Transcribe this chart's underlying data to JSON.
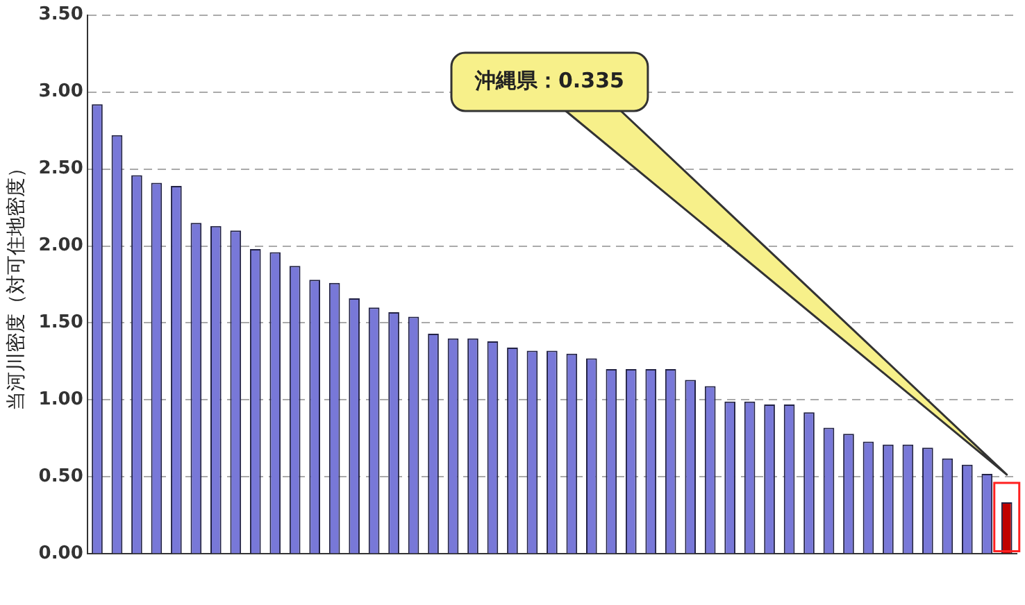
{
  "chart_data": {
    "type": "bar",
    "ylabel": "当河川密度（対可住地密度）",
    "categories": [
      null,
      null,
      null,
      null,
      null,
      null,
      null,
      null,
      null,
      null,
      null,
      null,
      null,
      null,
      null,
      null,
      null,
      null,
      null,
      null,
      null,
      null,
      null,
      null,
      null,
      null,
      null,
      null,
      null,
      null,
      null,
      null,
      null,
      null,
      null,
      null,
      null,
      null,
      null,
      null,
      null,
      null,
      null,
      null,
      null,
      null,
      null
    ],
    "values": [
      2.92,
      2.72,
      2.46,
      2.41,
      2.39,
      2.15,
      2.13,
      2.1,
      1.98,
      1.96,
      1.87,
      1.78,
      1.76,
      1.66,
      1.6,
      1.57,
      1.54,
      1.43,
      1.4,
      1.4,
      1.38,
      1.34,
      1.32,
      1.32,
      1.3,
      1.27,
      1.2,
      1.2,
      1.2,
      1.2,
      1.13,
      1.09,
      0.99,
      0.99,
      0.97,
      0.97,
      0.92,
      0.82,
      0.78,
      0.73,
      0.71,
      0.71,
      0.69,
      0.62,
      0.58,
      0.52,
      0.335
    ],
    "colors": [
      "#7878d8",
      "#7878d8",
      "#7878d8",
      "#7878d8",
      "#7878d8",
      "#7878d8",
      "#7878d8",
      "#7878d8",
      "#7878d8",
      "#7878d8",
      "#7878d8",
      "#7878d8",
      "#7878d8",
      "#7878d8",
      "#7878d8",
      "#7878d8",
      "#7878d8",
      "#7878d8",
      "#7878d8",
      "#7878d8",
      "#7878d8",
      "#7878d8",
      "#7878d8",
      "#7878d8",
      "#7878d8",
      "#7878d8",
      "#7878d8",
      "#7878d8",
      "#7878d8",
      "#7878d8",
      "#7878d8",
      "#7878d8",
      "#7878d8",
      "#7878d8",
      "#7878d8",
      "#7878d8",
      "#7878d8",
      "#7878d8",
      "#7878d8",
      "#7878d8",
      "#7878d8",
      "#7878d8",
      "#7878d8",
      "#7878d8",
      "#7878d8",
      "#7878d8",
      "#c00000"
    ],
    "ylim": [
      0,
      3.5
    ],
    "yticks": [
      {
        "value": 0,
        "label": "0.00"
      },
      {
        "value": 0.5,
        "label": "0.50"
      },
      {
        "value": 1,
        "label": "1.00"
      },
      {
        "value": 1.5,
        "label": "1.50"
      },
      {
        "value": 2,
        "label": "2.00"
      },
      {
        "value": 2.5,
        "label": "2.50"
      },
      {
        "value": 3,
        "label": "3.00"
      },
      {
        "value": 3.5,
        "label": "3.50"
      }
    ],
    "grid": "y",
    "legend": false,
    "annotations": [
      "沖縄県：0.335"
    ]
  }
}
